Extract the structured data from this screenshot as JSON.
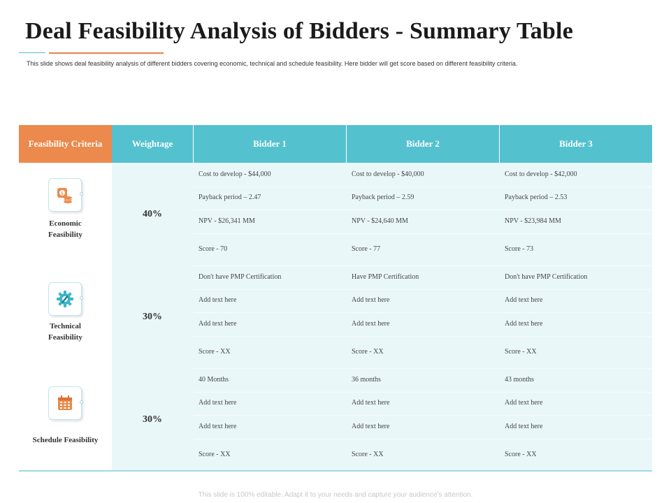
{
  "title": "Deal Feasibility Analysis of Bidders - Summary Table",
  "subtitle": "This slide shows deal feasibility analysis of different bidders covering economic, technical and schedule feasibility. Here bidder will get score based on different feasibility criteria.",
  "footer": "This slide is 100% editable. Adapt it to your needs and capture your audience's attention.",
  "colors": {
    "header_orange": "#eb8a4c",
    "header_teal": "#54c1cf",
    "body_bg": "#eaf7f9"
  },
  "table": {
    "headers": {
      "criteria": "Feasibility Criteria",
      "weightage": "Weightage",
      "bidder1": "Bidder 1",
      "bidder2": "Bidder 2",
      "bidder3": "Bidder 3"
    },
    "sections": [
      {
        "criteria": "Economic Feasibility",
        "icon": "coins-icon",
        "weightage": "40%",
        "rows": [
          [
            "Cost to develop - $44,000",
            "Cost to develop - $40,000",
            "Cost to develop - $42,000"
          ],
          [
            "Payback period – 2.47",
            "Payback period – 2.59",
            "Payback period – 2.53"
          ],
          [
            "NPV - $26,341 MM",
            "NPV - $24,640 MM",
            "NPV - $23,984 MM"
          ],
          [
            "Score - 70",
            "Score - 77",
            "Score - 73"
          ]
        ]
      },
      {
        "criteria": "Technical Feasibility",
        "icon": "gear-wrench-icon",
        "weightage": "30%",
        "rows": [
          [
            "Don't have PMP Certification",
            "Have PMP Certification",
            "Don't have PMP Certification"
          ],
          [
            "Add text here",
            "Add text here",
            "Add text here"
          ],
          [
            "Add text here",
            "Add text here",
            "Add text here"
          ],
          [
            "Score - XX",
            "Score - XX",
            "Score - XX"
          ]
        ]
      },
      {
        "criteria": "Schedule Feasibility",
        "icon": "calendar-icon",
        "weightage": "30%",
        "rows": [
          [
            "40 Months",
            "36 months",
            "43 months"
          ],
          [
            "Add text here",
            "Add text here",
            "Add text here"
          ],
          [
            "Add text here",
            "Add text here",
            "Add text here"
          ],
          [
            "Score - XX",
            "Score - XX",
            "Score - XX"
          ]
        ]
      }
    ]
  }
}
